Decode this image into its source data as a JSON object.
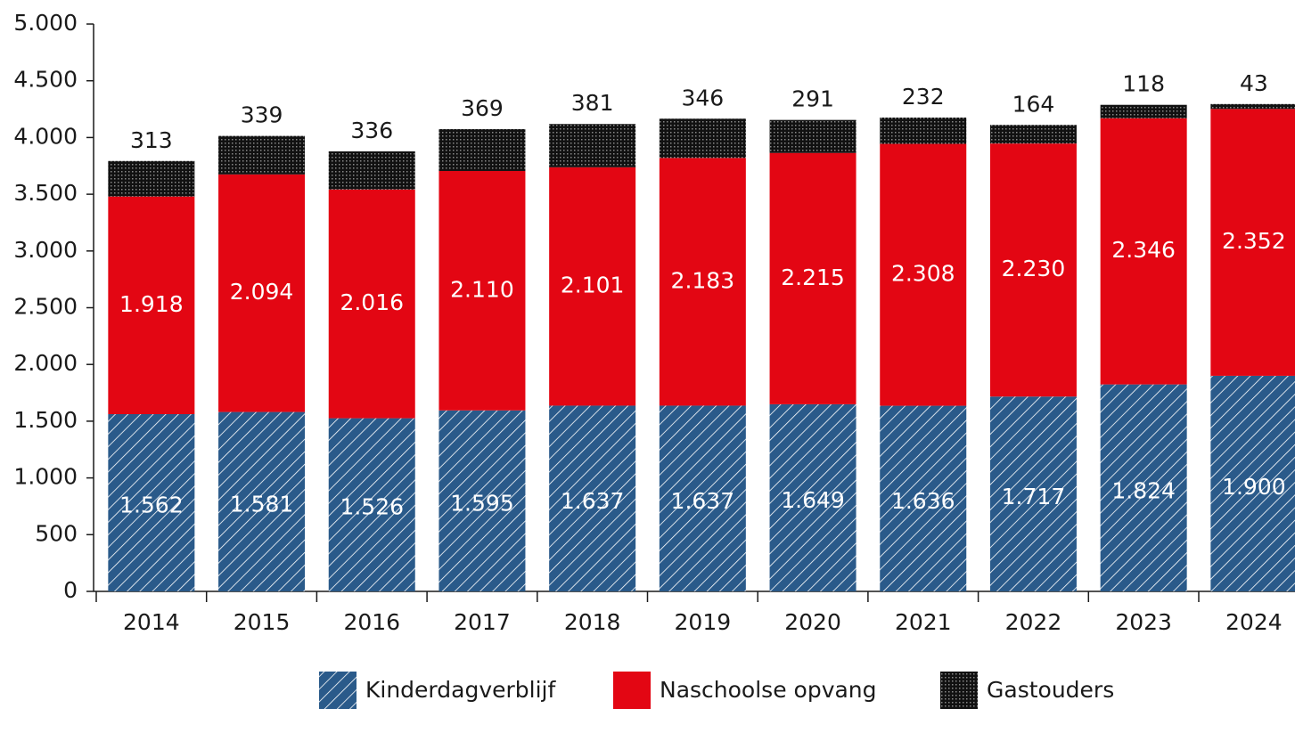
{
  "chart_data": {
    "type": "stacked_bar",
    "categories": [
      "2014",
      "2015",
      "2016",
      "2017",
      "2018",
      "2019",
      "2020",
      "2021",
      "2022",
      "2023",
      "2024"
    ],
    "series": [
      {
        "name": "Kinderdagverblijf",
        "color": "#2a5a8a",
        "pattern": "hatch",
        "values": [
          1562,
          1581,
          1526,
          1595,
          1637,
          1637,
          1649,
          1636,
          1717,
          1824,
          1900
        ],
        "value_labels": [
          "1.562",
          "1.581",
          "1.526",
          "1.595",
          "1.637",
          "1.637",
          "1.649",
          "1.636",
          "1.717",
          "1.824",
          "1.900"
        ]
      },
      {
        "name": "Naschoolse opvang",
        "color": "#e30613",
        "values": [
          1918,
          2094,
          2016,
          2110,
          2101,
          2183,
          2215,
          2308,
          2230,
          2346,
          2352
        ],
        "value_labels": [
          "1.918",
          "2.094",
          "2.016",
          "2.110",
          "2.101",
          "2.183",
          "2.215",
          "2.308",
          "2.230",
          "2.346",
          "2.352"
        ]
      },
      {
        "name": "Gastouders",
        "color": "#1a1a1a",
        "pattern": "dots",
        "values": [
          313,
          339,
          336,
          369,
          381,
          346,
          291,
          232,
          164,
          118,
          43
        ]
      }
    ],
    "ylim": [
      0,
      5000
    ],
    "yticks": [
      0,
      500,
      {
        "value": 1000,
        "label": "1.000"
      },
      {
        "value": 1500,
        "label": "1.500"
      },
      {
        "value": 2000,
        "label": "2.000"
      },
      {
        "value": 2500,
        "label": "2.500"
      },
      {
        "value": 3000,
        "label": "3.000"
      },
      {
        "value": 3500,
        "label": "3.500"
      },
      {
        "value": 4000,
        "label": "4.000"
      },
      {
        "value": 4500,
        "label": "4.500"
      },
      {
        "value": 5000,
        "label": "5.000"
      }
    ],
    "legend": "bottom"
  }
}
